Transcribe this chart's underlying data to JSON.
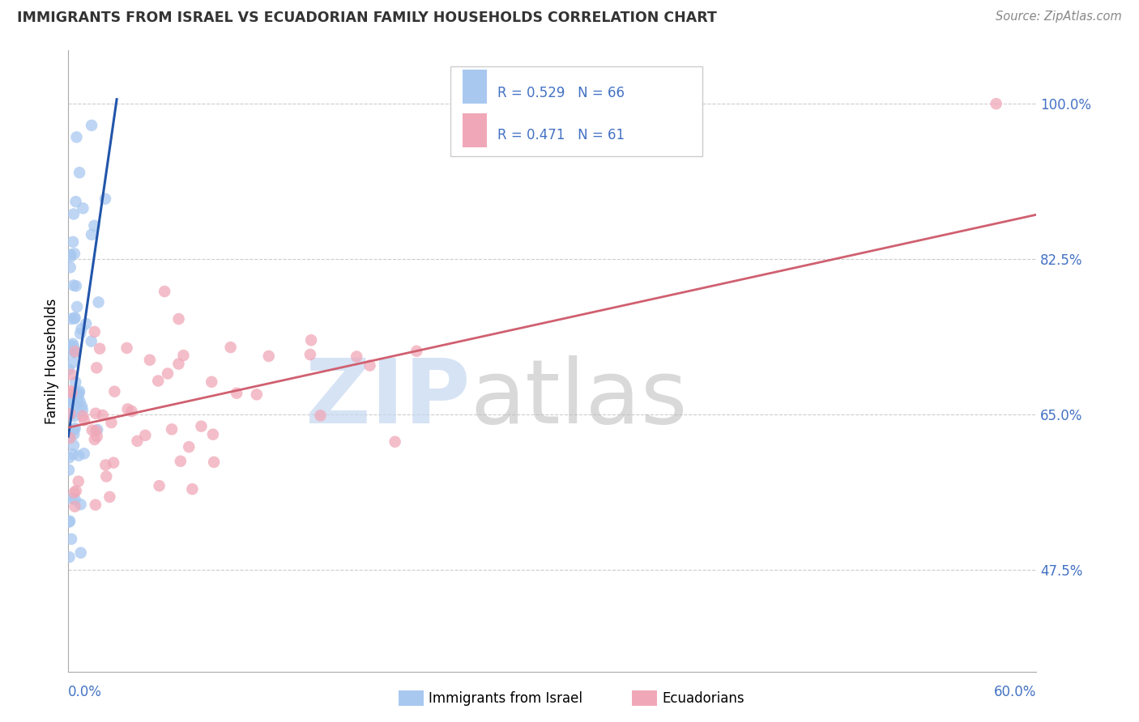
{
  "title": "IMMIGRANTS FROM ISRAEL VS ECUADORIAN FAMILY HOUSEHOLDS CORRELATION CHART",
  "source": "Source: ZipAtlas.com",
  "ylabel": "Family Households",
  "yticks": [
    47.5,
    65.0,
    82.5,
    100.0
  ],
  "ytick_labels": [
    "47.5%",
    "65.0%",
    "82.5%",
    "100.0%"
  ],
  "xmin": 0.0,
  "xmax": 60.0,
  "ymin": 36.0,
  "ymax": 106.0,
  "legend_label_blue": "Immigrants from Israel",
  "legend_label_pink": "Ecuadorians",
  "blue_scatter_color": "#a8c8f0",
  "pink_scatter_color": "#f0a8b8",
  "blue_line_color": "#2255aa",
  "pink_line_color": "#d06070",
  "blue_legend_color": "#a8c8f0",
  "pink_legend_color": "#f0a8b8",
  "tick_color": "#4472c4",
  "grid_color": "#cccccc",
  "title_color": "#333333",
  "source_color": "#888888",
  "watermark_zip_color": "#c5d8f0",
  "watermark_atlas_color": "#bbbbbb",
  "blue_trend_x0": 0.0,
  "blue_trend_y0": 62.5,
  "blue_trend_x1": 3.0,
  "blue_trend_y1": 100.5,
  "pink_trend_x0": 0.0,
  "pink_trend_y0": 63.5,
  "pink_trend_x1": 60.0,
  "pink_trend_y1": 87.5,
  "n_blue": 66,
  "n_pink": 61,
  "r_blue": 0.529,
  "r_pink": 0.471
}
